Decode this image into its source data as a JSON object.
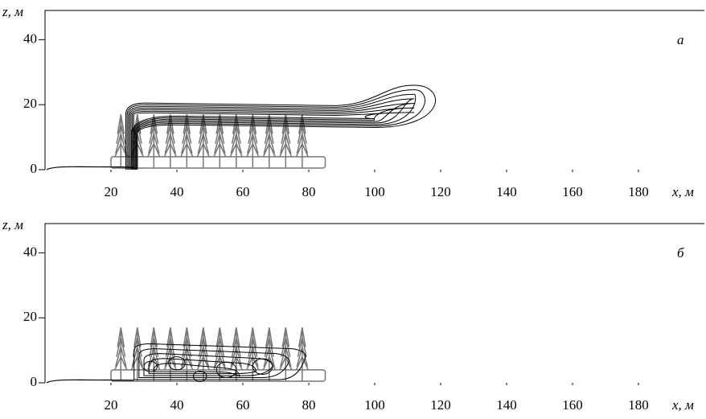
{
  "chart_data": [
    {
      "type": "contour",
      "panel_label": "а",
      "xlabel": "x, м",
      "ylabel": "z, м",
      "xlim": [
        0,
        200
      ],
      "ylim": [
        0,
        49
      ],
      "xticks": [
        20,
        40,
        60,
        80,
        100,
        120,
        140,
        160,
        180
      ],
      "yticks": [
        0,
        20,
        40
      ]
    },
    {
      "type": "contour",
      "panel_label": "б",
      "xlabel": "x, м",
      "ylabel": "z, м",
      "xlim": [
        0,
        200
      ],
      "ylim": [
        0,
        49
      ],
      "xticks": [
        20,
        40,
        60,
        80,
        100,
        120,
        140,
        160,
        180
      ],
      "yticks": [
        0,
        20,
        40
      ]
    }
  ]
}
